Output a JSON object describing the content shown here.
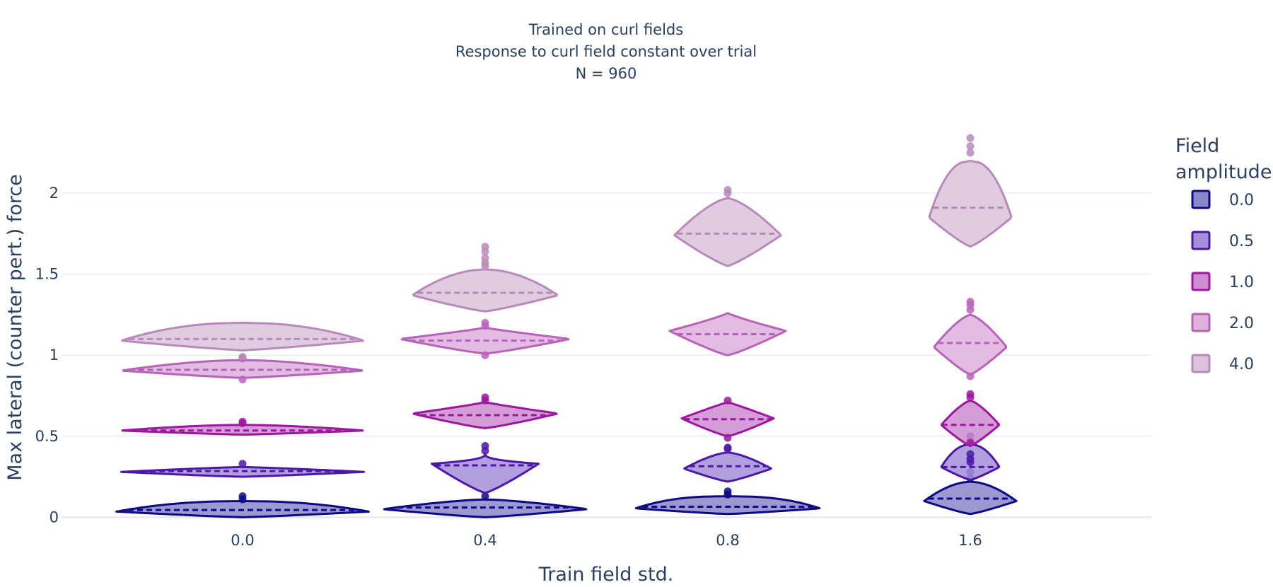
{
  "chart_data": {
    "type": "violin",
    "title_lines": [
      "Trained on curl fields",
      "Response to curl field constant over trial",
      "N = 960"
    ],
    "xlabel": "Train field std.",
    "ylabel": "Max lateral (counter pert.) force",
    "categories": [
      "0.0",
      "0.4",
      "0.8",
      "1.6"
    ],
    "ylim": [
      -0.09,
      2.45
    ],
    "yticks": [
      0,
      0.5,
      1,
      1.5,
      2
    ],
    "ytick_labels": [
      "0",
      "0.5",
      "1",
      "1.5",
      "2"
    ],
    "grid": true,
    "legend": {
      "title_lines": [
        "Field",
        "amplitude"
      ],
      "placement": "right"
    },
    "series": [
      {
        "name": "0.0",
        "line_color": "#0d0887",
        "fill_color": "#8a87c8",
        "violins": [
          {
            "category": "0.0",
            "min": 0.0,
            "max": 0.1,
            "mean": 0.045,
            "mode": 0.035,
            "halfwidth": 0.52,
            "outliers": [
              0.11,
              0.13
            ]
          },
          {
            "category": "0.4",
            "min": 0.0,
            "max": 0.11,
            "mean": 0.06,
            "mode": 0.05,
            "halfwidth": 0.42,
            "outliers": [
              0.13
            ]
          },
          {
            "category": "0.8",
            "min": 0.02,
            "max": 0.13,
            "mean": 0.065,
            "mode": 0.055,
            "halfwidth": 0.38,
            "outliers": [
              0.14,
              0.16
            ]
          },
          {
            "category": "1.6",
            "min": 0.02,
            "max": 0.22,
            "mean": 0.115,
            "mode": 0.1,
            "halfwidth": 0.19,
            "outliers": [
              0.24,
              0.28
            ]
          }
        ]
      },
      {
        "name": "0.5",
        "line_color": "#4b18a8",
        "fill_color": "#a58fd8",
        "violins": [
          {
            "category": "0.0",
            "min": 0.25,
            "max": 0.31,
            "mean": 0.285,
            "mode": 0.28,
            "halfwidth": 0.5,
            "outliers": [
              0.33
            ]
          },
          {
            "category": "0.4",
            "min": 0.15,
            "max": 0.39,
            "mean": 0.32,
            "mode": 0.33,
            "halfwidth": 0.22,
            "outliers": [
              0.41,
              0.44
            ]
          },
          {
            "category": "0.8",
            "min": 0.22,
            "max": 0.4,
            "mean": 0.315,
            "mode": 0.3,
            "halfwidth": 0.18,
            "outliers": [
              0.42,
              0.43
            ]
          },
          {
            "category": "1.6",
            "min": 0.23,
            "max": 0.45,
            "mean": 0.31,
            "mode": 0.31,
            "halfwidth": 0.12,
            "outliers": [
              0.34,
              0.36,
              0.39,
              0.47,
              0.5
            ]
          }
        ]
      },
      {
        "name": "1.0",
        "line_color": "#9c179e",
        "fill_color": "#cc8cd0",
        "violins": [
          {
            "category": "0.0",
            "min": 0.51,
            "max": 0.57,
            "mean": 0.535,
            "mode": 0.535,
            "halfwidth": 0.5,
            "outliers": [
              0.58,
              0.59
            ]
          },
          {
            "category": "0.4",
            "min": 0.55,
            "max": 0.71,
            "mean": 0.63,
            "mode": 0.64,
            "halfwidth": 0.3,
            "outliers": [
              0.72,
              0.74
            ]
          },
          {
            "category": "0.8",
            "min": 0.5,
            "max": 0.71,
            "mean": 0.605,
            "mode": 0.61,
            "halfwidth": 0.19,
            "outliers": [
              0.49,
              0.72
            ]
          },
          {
            "category": "1.6",
            "min": 0.44,
            "max": 0.72,
            "mean": 0.57,
            "mode": 0.57,
            "halfwidth": 0.12,
            "outliers": [
              0.46,
              0.74,
              0.76
            ]
          }
        ]
      },
      {
        "name": "2.0",
        "line_color": "#b863b8",
        "fill_color": "#ddb0dd",
        "violins": [
          {
            "category": "0.0",
            "min": 0.86,
            "max": 0.97,
            "mean": 0.91,
            "mode": 0.905,
            "halfwidth": 0.5,
            "outliers": [
              0.85,
              0.98
            ]
          },
          {
            "category": "0.4",
            "min": 1.01,
            "max": 1.17,
            "mean": 1.09,
            "mode": 1.1,
            "halfwidth": 0.35,
            "outliers": [
              1.0,
              1.18,
              1.2
            ]
          },
          {
            "category": "0.8",
            "min": 1.0,
            "max": 1.26,
            "mean": 1.13,
            "mode": 1.15,
            "halfwidth": 0.24,
            "outliers": []
          },
          {
            "category": "1.6",
            "min": 0.88,
            "max": 1.25,
            "mean": 1.075,
            "mode": 1.05,
            "halfwidth": 0.15,
            "outliers": [
              0.87,
              1.28,
              1.31,
              1.33
            ]
          }
        ]
      },
      {
        "name": "4.0",
        "line_color": "#b98ab9",
        "fill_color": "#dbc3dc",
        "violins": [
          {
            "category": "0.0",
            "min": 1.03,
            "max": 1.2,
            "mean": 1.1,
            "mode": 1.09,
            "halfwidth": 0.5,
            "outliers": [
              0.99
            ]
          },
          {
            "category": "0.4",
            "min": 1.27,
            "max": 1.53,
            "mean": 1.385,
            "mode": 1.37,
            "halfwidth": 0.3,
            "outliers": [
              1.55,
              1.57,
              1.6,
              1.64,
              1.67
            ]
          },
          {
            "category": "0.8",
            "min": 1.55,
            "max": 1.97,
            "mean": 1.75,
            "mode": 1.74,
            "halfwidth": 0.22,
            "outliers": [
              2.0,
              2.02
            ]
          },
          {
            "category": "1.6",
            "min": 1.67,
            "max": 2.2,
            "mean": 1.91,
            "mode": 1.85,
            "halfwidth": 0.17,
            "outliers": [
              2.25,
              2.29,
              2.34
            ]
          }
        ]
      }
    ]
  }
}
